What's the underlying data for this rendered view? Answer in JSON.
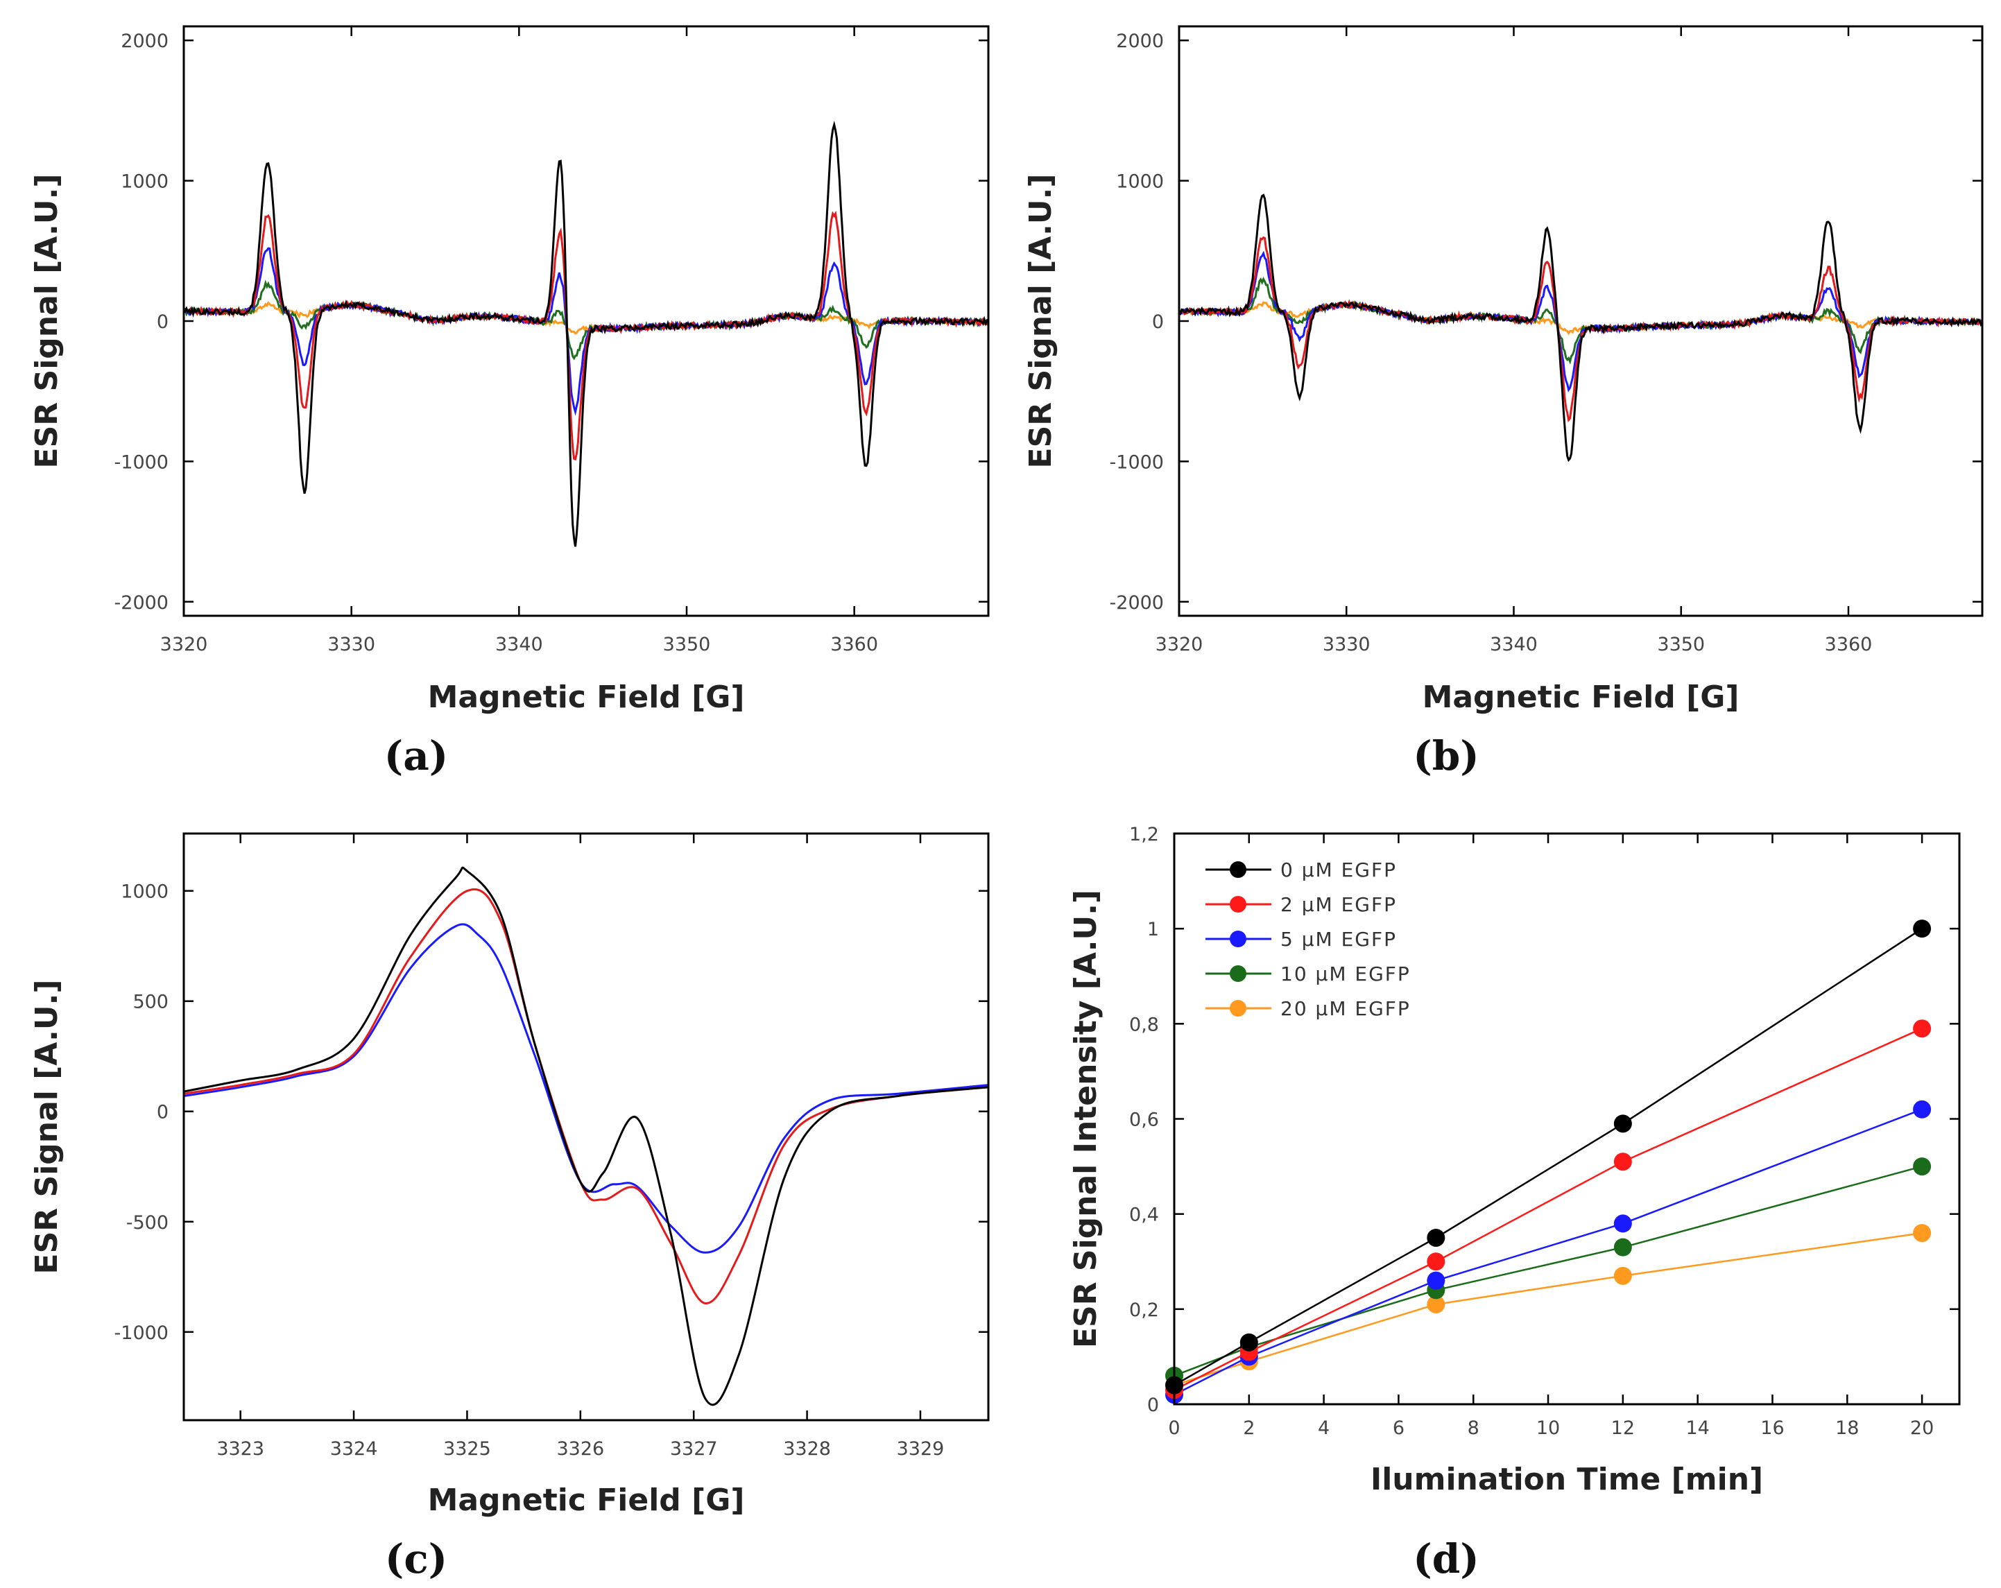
{
  "chart_data": [
    {
      "panel": "(a)",
      "type": "line",
      "xlabel": "Magnetic Field [G]",
      "ylabel": "ESR Signal [A.U.]",
      "xlim": [
        3320,
        3368
      ],
      "ylim": [
        -2100,
        2100
      ],
      "xticks": [
        3320,
        3330,
        3340,
        3350,
        3360
      ],
      "yticks": [
        -2000,
        -1000,
        0,
        1000,
        2000
      ],
      "xtick_labels": [
        "3320",
        "3330",
        "3340",
        "3350",
        "3360"
      ],
      "ytick_labels": [
        "-2000",
        "-1000",
        "0",
        "1000",
        "2000"
      ],
      "series": [
        {
          "name": "0 µM EGFP",
          "color": "#000000",
          "peaks": [
            [
              3325.0,
              1080
            ],
            [
              3327.2,
              -1290
            ],
            [
              3342.5,
              1270
            ],
            [
              3343.3,
              -1640
            ],
            [
              3358.8,
              1390
            ],
            [
              3360.7,
              -1040
            ]
          ]
        },
        {
          "name": "2 µM EGFP",
          "color": "#e41a1c",
          "peaks": [
            [
              3325.0,
              700
            ],
            [
              3327.2,
              -700
            ],
            [
              3342.5,
              720
            ],
            [
              3343.3,
              -1000
            ],
            [
              3358.8,
              760
            ],
            [
              3360.7,
              -650
            ]
          ]
        },
        {
          "name": "5 µM EGFP",
          "color": "#1a1aff",
          "peaks": [
            [
              3325.0,
              460
            ],
            [
              3327.2,
              -380
            ],
            [
              3342.5,
              390
            ],
            [
              3343.3,
              -620
            ],
            [
              3358.8,
              400
            ],
            [
              3360.7,
              -460
            ]
          ]
        },
        {
          "name": "10 µM EGFP",
          "color": "#1f6f1f",
          "peaks": [
            [
              3325.0,
              200
            ],
            [
              3327.2,
              -120
            ],
            [
              3342.5,
              100
            ],
            [
              3343.3,
              -220
            ],
            [
              3358.8,
              80
            ],
            [
              3360.7,
              -180
            ]
          ]
        },
        {
          "name": "20 µM EGFP",
          "color": "#ff9a1f",
          "peaks": [
            [
              3325.0,
              60
            ],
            [
              3327.2,
              -30
            ],
            [
              3342.5,
              20
            ],
            [
              3343.3,
              -40
            ],
            [
              3358.8,
              20
            ],
            [
              3360.7,
              -40
            ]
          ]
        }
      ]
    },
    {
      "panel": "(b)",
      "type": "line",
      "xlabel": "Magnetic Field [G]",
      "ylabel": "ESR Signal [A.U.]",
      "xlim": [
        3320,
        3368
      ],
      "ylim": [
        -2100,
        2100
      ],
      "xticks": [
        3320,
        3330,
        3340,
        3350,
        3360
      ],
      "yticks": [
        -2000,
        -1000,
        0,
        1000,
        2000
      ],
      "xtick_labels": [
        "3320",
        "3330",
        "3340",
        "3350",
        "3360"
      ],
      "ytick_labels": [
        "-2000",
        "-1000",
        "0",
        "1000",
        "2000"
      ],
      "series": [
        {
          "name": "0 µM EGFP",
          "color": "#000000",
          "peaks": [
            [
              3325.0,
              850
            ],
            [
              3327.2,
              -610
            ],
            [
              3342.0,
              670
            ],
            [
              3343.3,
              -960
            ],
            [
              3358.8,
              710
            ],
            [
              3360.7,
              -780
            ]
          ]
        },
        {
          "name": "2 µM EGFP",
          "color": "#e41a1c",
          "peaks": [
            [
              3325.0,
              540
            ],
            [
              3327.2,
              -400
            ],
            [
              3342.0,
              430
            ],
            [
              3343.3,
              -650
            ],
            [
              3358.8,
              370
            ],
            [
              3360.7,
              -550
            ]
          ]
        },
        {
          "name": "5 µM EGFP",
          "color": "#1a1aff",
          "peaks": [
            [
              3325.0,
              420
            ],
            [
              3327.2,
              -200
            ],
            [
              3342.0,
              260
            ],
            [
              3343.3,
              -450
            ],
            [
              3358.8,
              230
            ],
            [
              3360.7,
              -390
            ]
          ]
        },
        {
          "name": "10 µM EGFP",
          "color": "#1f6f1f",
          "peaks": [
            [
              3325.0,
              230
            ],
            [
              3327.2,
              -90
            ],
            [
              3342.0,
              90
            ],
            [
              3343.3,
              -240
            ],
            [
              3358.8,
              60
            ],
            [
              3360.7,
              -210
            ]
          ]
        },
        {
          "name": "20 µM EGFP",
          "color": "#ff9a1f",
          "peaks": [
            [
              3325.0,
              60
            ],
            [
              3327.2,
              -30
            ],
            [
              3342.0,
              20
            ],
            [
              3343.3,
              -40
            ],
            [
              3358.8,
              20
            ],
            [
              3360.7,
              -40
            ]
          ]
        }
      ]
    },
    {
      "panel": "(c)",
      "type": "line",
      "xlabel": "Magnetic Field [G]",
      "ylabel": "ESR Signal [A.U.]",
      "xlim": [
        3322.5,
        3329.6
      ],
      "ylim": [
        -1400,
        1260
      ],
      "xticks": [
        3323,
        3324,
        3325,
        3326,
        3327,
        3328,
        3329
      ],
      "yticks": [
        -1000,
        -500,
        0,
        500,
        1000
      ],
      "xtick_labels": [
        "3323",
        "3324",
        "3325",
        "3326",
        "3327",
        "3328",
        "3329"
      ],
      "ytick_labels": [
        "-1000",
        "-500",
        "0",
        "500",
        "1000"
      ],
      "series": [
        {
          "name": "0 µM EGFP",
          "color": "#000000",
          "x": [
            3322.5,
            3323.0,
            3323.5,
            3324.0,
            3324.5,
            3324.9,
            3325.0,
            3325.3,
            3325.6,
            3326.0,
            3326.2,
            3326.5,
            3326.8,
            3327.1,
            3327.4,
            3327.8,
            3328.2,
            3328.8,
            3329.6
          ],
          "y": [
            90,
            140,
            190,
            330,
            800,
            1060,
            1090,
            890,
            300,
            -320,
            -280,
            -30,
            -560,
            -1300,
            -1100,
            -300,
            0,
            70,
            110
          ]
        },
        {
          "name": "2 µM EGFP",
          "color": "#e41a1c",
          "x": [
            3322.5,
            3323.0,
            3323.5,
            3324.0,
            3324.5,
            3325.0,
            3325.3,
            3325.6,
            3326.0,
            3326.2,
            3326.5,
            3326.8,
            3327.1,
            3327.4,
            3327.8,
            3328.2,
            3328.8,
            3329.6
          ],
          "y": [
            80,
            120,
            170,
            260,
            700,
            1000,
            860,
            300,
            -320,
            -400,
            -350,
            -600,
            -870,
            -650,
            -150,
            10,
            70,
            110
          ]
        },
        {
          "name": "5 µM EGFP",
          "color": "#1a1aff",
          "x": [
            3322.5,
            3323.0,
            3323.5,
            3324.0,
            3324.5,
            3324.9,
            3325.1,
            3325.3,
            3325.6,
            3326.0,
            3326.3,
            3326.5,
            3326.8,
            3327.1,
            3327.4,
            3327.8,
            3328.2,
            3328.8,
            3329.6
          ],
          "y": [
            70,
            110,
            160,
            250,
            650,
            840,
            800,
            660,
            250,
            -320,
            -330,
            -340,
            -520,
            -640,
            -520,
            -120,
            50,
            80,
            120
          ]
        }
      ]
    },
    {
      "panel": "(d)",
      "type": "line",
      "xlabel": "Ilumination Time [min]",
      "ylabel": "ESR Signal Intensity [A.U.]",
      "xlim": [
        0,
        21
      ],
      "ylim": [
        0,
        1.2
      ],
      "xticks": [
        0,
        2,
        4,
        6,
        8,
        10,
        12,
        14,
        16,
        18,
        20
      ],
      "yticks": [
        0,
        0.2,
        0.4,
        0.6,
        0.8,
        1.0,
        1.2
      ],
      "xtick_labels": [
        "0",
        "2",
        "4",
        "6",
        "8",
        "10",
        "12",
        "14",
        "16",
        "18",
        "20"
      ],
      "ytick_labels": [
        "0",
        "0,2",
        "0,4",
        "0,6",
        "0,8",
        "1",
        "1,2"
      ],
      "legend": "top-left",
      "x": [
        0,
        2,
        7,
        12,
        20
      ],
      "series": [
        {
          "name": "0 µM EGFP",
          "color": "#000000",
          "values": [
            0.04,
            0.13,
            0.35,
            0.59,
            1.0
          ]
        },
        {
          "name": "2 µM EGFP",
          "color": "#ff1a1a",
          "values": [
            0.03,
            0.11,
            0.3,
            0.51,
            0.79
          ]
        },
        {
          "name": "5 µM EGFP",
          "color": "#1a1aff",
          "values": [
            0.02,
            0.1,
            0.26,
            0.38,
            0.62
          ]
        },
        {
          "name": "10 µM EGFP",
          "color": "#1a6b1a",
          "values": [
            0.06,
            0.12,
            0.24,
            0.33,
            0.5
          ]
        },
        {
          "name": "20 µM EGFP",
          "color": "#ff9a1f",
          "values": [
            0.04,
            0.09,
            0.21,
            0.27,
            0.36
          ]
        }
      ]
    }
  ]
}
